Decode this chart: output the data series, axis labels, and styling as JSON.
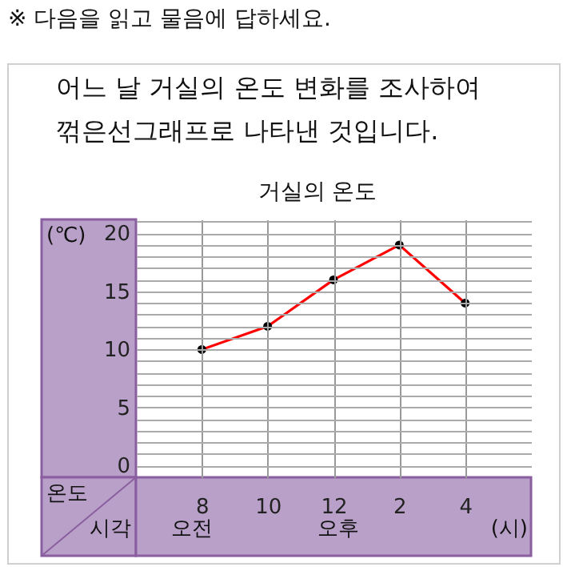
{
  "chart_data": {
    "type": "line",
    "title": "거실의 온도",
    "ylabel": "온도",
    "xlabel": "시각",
    "categories": [
      "8",
      "10",
      "12",
      "2",
      "4"
    ],
    "series": [
      {
        "color": "#ff0000",
        "values": [
          10,
          12,
          16,
          19,
          14
        ]
      }
    ],
    "ylim": [
      -1,
      21.2
    ],
    "yticks": [
      0,
      {
        "value": 1,
        "label": null
      },
      {
        "value": 2,
        "label": null
      },
      {
        "value": 3,
        "label": null
      },
      {
        "value": 4,
        "label": null
      },
      5,
      {
        "value": 6,
        "label": null
      },
      {
        "value": 7,
        "label": null
      },
      {
        "value": 8,
        "label": null
      },
      {
        "value": 9,
        "label": null
      },
      10,
      {
        "value": 11,
        "label": null
      },
      {
        "value": 12,
        "label": null
      },
      {
        "value": 13,
        "label": null
      },
      {
        "value": 14,
        "label": null
      },
      15,
      {
        "value": 16,
        "label": null
      },
      {
        "value": 17,
        "label": null
      },
      {
        "value": 18,
        "label": null
      },
      {
        "value": 19,
        "label": null
      },
      20,
      {
        "value": 21,
        "label": null
      }
    ],
    "grid": true,
    "marker": "circle",
    "line_style": "solid",
    "annotations": [
      "※ 다음을 읽고 물음에 답하세요.",
      "어느 날 거실의 온도 변화를 조사하여",
      "꺾은선그래프로 나타낸 것입니다.",
      "(℃)",
      "오전",
      "오후",
      "(시)"
    ]
  }
}
